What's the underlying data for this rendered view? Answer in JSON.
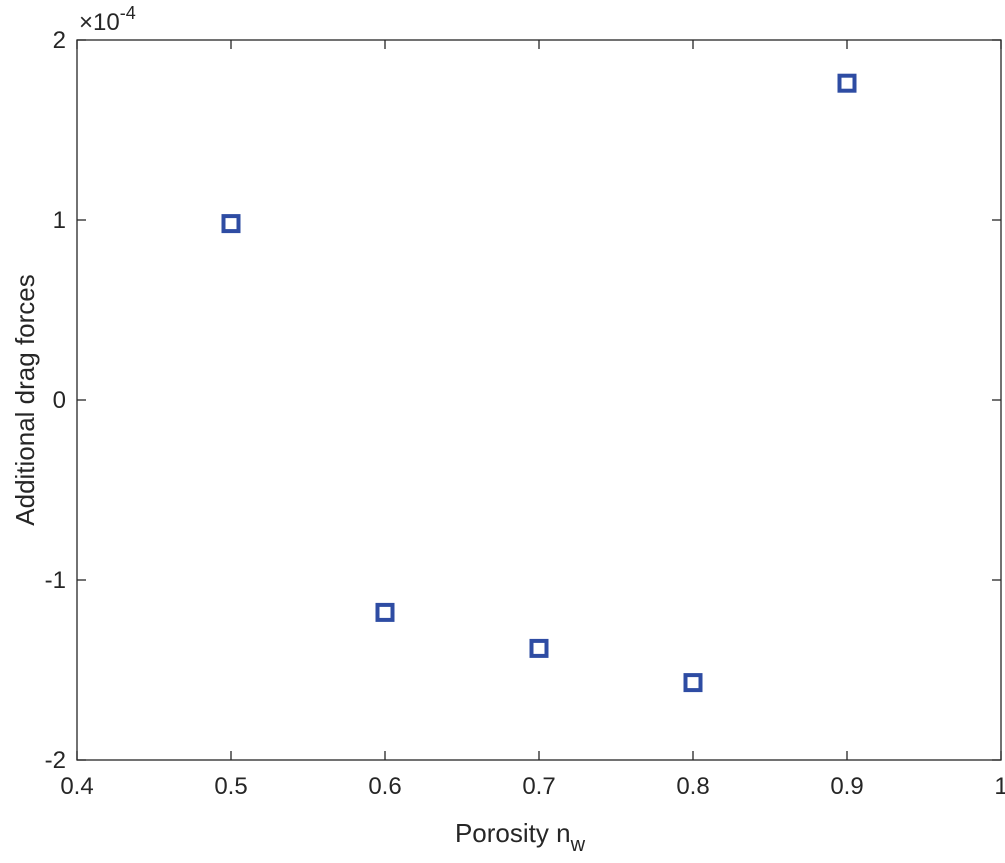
{
  "chart_data": {
    "type": "scatter",
    "title": "",
    "xlabel": "Porosity n",
    "xlabel_subscript": "w",
    "ylabel": "Additional drag forces",
    "xlim": [
      0.4,
      1
    ],
    "ylim": [
      -2,
      2
    ],
    "y_scale_base": "×10",
    "y_scale_exponent": "-4",
    "x_ticks": [
      0.4,
      0.5,
      0.6,
      0.7,
      0.8,
      0.9,
      1
    ],
    "x_tick_labels": [
      "0.4",
      "0.5",
      "0.6",
      "0.7",
      "0.8",
      "0.9",
      "1"
    ],
    "y_ticks": [
      -2,
      -1,
      0,
      1,
      2
    ],
    "y_tick_labels": [
      "-2",
      "-1",
      "0",
      "1",
      "2"
    ],
    "grid": false,
    "marker": "square",
    "marker_color": "#2E4CA3",
    "series": [
      {
        "name": "Additional drag forces",
        "x": [
          0.5,
          0.6,
          0.7,
          0.8,
          0.9
        ],
        "y": [
          0.98,
          -1.18,
          -1.38,
          -1.57,
          1.76
        ]
      }
    ]
  }
}
